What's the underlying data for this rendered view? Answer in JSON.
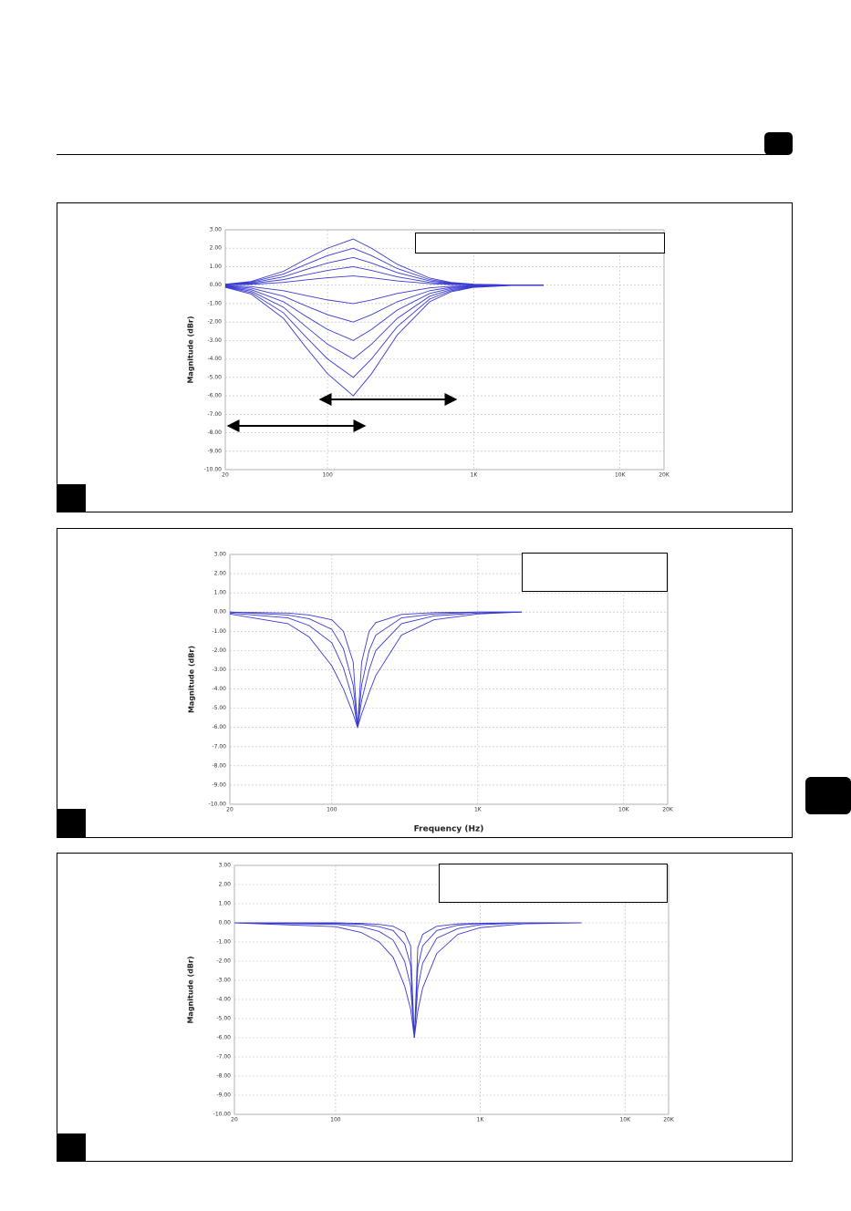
{
  "chart_data": [
    {
      "type": "line",
      "y_label": "Magnitude (dBr)",
      "color": "#3b3bd0",
      "grid": true,
      "xscale": "log",
      "xlim": [
        20,
        20000
      ],
      "ylim": [
        -10,
        3
      ],
      "xticks": [
        20,
        100,
        {
          "value": 1000,
          "label": "1K"
        },
        {
          "value": 10000,
          "label": "10K"
        },
        {
          "value": 20000,
          "label": "20K"
        }
      ],
      "yticks": [
        {
          "value": 3,
          "label": "3.00"
        },
        {
          "value": 2,
          "label": "2.00"
        },
        {
          "value": 1,
          "label": "1.00"
        },
        {
          "value": 0,
          "label": "0.00"
        },
        {
          "value": -1,
          "label": "-1.00"
        },
        {
          "value": -2,
          "label": "-2.00"
        },
        {
          "value": -3,
          "label": "-3.00"
        },
        {
          "value": -4,
          "label": "-4.00"
        },
        {
          "value": -5,
          "label": "-5.00"
        },
        {
          "value": -6,
          "label": "-6.00"
        },
        {
          "value": -7,
          "label": "-7.00"
        },
        {
          "value": -8,
          "label": "-8.00"
        },
        {
          "value": -9,
          "label": "-9.00"
        },
        {
          "value": -10,
          "label": "-10.00"
        }
      ],
      "x": [
        20,
        30,
        50,
        70,
        100,
        150,
        200,
        300,
        500,
        700,
        1000,
        2000,
        3000
      ],
      "series": [
        {
          "values": [
            0.05,
            0.2,
            0.75,
            1.38,
            2,
            2.5,
            2,
            1.13,
            0.38,
            0.15,
            0.05,
            0,
            0
          ]
        },
        {
          "values": [
            0.04,
            0.16,
            0.6,
            1.1,
            1.6,
            2,
            1.6,
            0.9,
            0.3,
            0.12,
            0.04,
            0,
            0
          ]
        },
        {
          "values": [
            0.03,
            0.12,
            0.45,
            0.83,
            1.2,
            1.5,
            1.2,
            0.68,
            0.23,
            0.09,
            0.03,
            0,
            0
          ]
        },
        {
          "values": [
            0.02,
            0.08,
            0.3,
            0.55,
            0.8,
            1,
            0.8,
            0.45,
            0.15,
            0.06,
            0.02,
            0,
            0
          ]
        },
        {
          "values": [
            0.01,
            0.04,
            0.15,
            0.28,
            0.4,
            0.5,
            0.4,
            0.23,
            0.08,
            0.03,
            0.01,
            0,
            0
          ]
        },
        {
          "values": [
            -0.02,
            -0.08,
            -0.3,
            -0.55,
            -0.8,
            -1,
            -0.8,
            -0.45,
            -0.15,
            -0.06,
            -0.02,
            0,
            0
          ]
        },
        {
          "values": [
            -0.04,
            -0.16,
            -0.6,
            -1.1,
            -1.6,
            -2,
            -1.6,
            -0.9,
            -0.3,
            -0.12,
            -0.04,
            0,
            0
          ]
        },
        {
          "values": [
            -0.06,
            -0.24,
            -0.9,
            -1.65,
            -2.4,
            -3,
            -2.4,
            -1.35,
            -0.45,
            -0.18,
            -0.06,
            0,
            0
          ]
        },
        {
          "values": [
            -0.08,
            -0.32,
            -1.2,
            -2.2,
            -3.2,
            -4,
            -3.2,
            -1.8,
            -0.6,
            -0.24,
            -0.08,
            0,
            0
          ]
        },
        {
          "values": [
            -0.1,
            -0.4,
            -1.5,
            -2.75,
            -4,
            -5,
            -4,
            -2.25,
            -0.75,
            -0.3,
            -0.1,
            0,
            0
          ]
        },
        {
          "values": [
            -0.12,
            -0.48,
            -1.8,
            -3.3,
            -4.8,
            -6,
            -4.8,
            -2.7,
            -0.9,
            -0.36,
            -0.12,
            0,
            0
          ]
        }
      ]
    },
    {
      "type": "line",
      "y_label": "Magnitude (dBr)",
      "x_label": "Frequency (Hz)",
      "color": "#3b3bd0",
      "grid": true,
      "xscale": "log",
      "xlim": [
        20,
        20000
      ],
      "ylim": [
        -10,
        3
      ],
      "xticks": [
        20,
        100,
        {
          "value": 1000,
          "label": "1K"
        },
        {
          "value": 10000,
          "label": "10K"
        },
        {
          "value": 20000,
          "label": "20K"
        }
      ],
      "yticks": [
        {
          "value": 3,
          "label": "3.00"
        },
        {
          "value": 2,
          "label": "2.00"
        },
        {
          "value": 1,
          "label": "1.00"
        },
        {
          "value": 0,
          "label": "0.00"
        },
        {
          "value": -1,
          "label": "-1.00"
        },
        {
          "value": -2,
          "label": "-2.00"
        },
        {
          "value": -3,
          "label": "-3.00"
        },
        {
          "value": -4,
          "label": "-4.00"
        },
        {
          "value": -5,
          "label": "-5.00"
        },
        {
          "value": -6,
          "label": "-6.00"
        },
        {
          "value": -7,
          "label": "-7.00"
        },
        {
          "value": -8,
          "label": "-8.00"
        },
        {
          "value": -9,
          "label": "-9.00"
        },
        {
          "value": -10,
          "label": "-10.00"
        }
      ],
      "x": [
        20,
        50,
        70,
        100,
        120,
        140,
        150,
        160,
        180,
        200,
        300,
        500,
        1000,
        2000
      ],
      "series": [
        {
          "values": [
            -0.1,
            -0.6,
            -1.3,
            -2.8,
            -4,
            -5.3,
            -6,
            -5.3,
            -4.2,
            -3.3,
            -1.2,
            -0.4,
            -0.1,
            0
          ]
        },
        {
          "values": [
            -0.05,
            -0.3,
            -0.7,
            -1.6,
            -2.9,
            -4.6,
            -6,
            -4.6,
            -3,
            -2,
            -0.6,
            -0.2,
            -0.05,
            0
          ]
        },
        {
          "values": [
            0,
            -0.15,
            -0.35,
            -0.9,
            -1.9,
            -3.8,
            -6,
            -3.8,
            -2,
            -1.2,
            -0.3,
            -0.1,
            0,
            0
          ]
        },
        {
          "values": [
            0,
            -0.05,
            -0.15,
            -0.4,
            -1,
            -2.6,
            -6,
            -2.6,
            -1,
            -0.55,
            -0.12,
            -0.03,
            0,
            0
          ]
        }
      ]
    },
    {
      "type": "line",
      "y_label": "Magnitude (dBr)",
      "color": "#3b3bd0",
      "grid": true,
      "xscale": "log",
      "xlim": [
        20,
        20000
      ],
      "ylim": [
        -10,
        3
      ],
      "xticks": [
        20,
        100,
        {
          "value": 1000,
          "label": "1K"
        },
        {
          "value": 10000,
          "label": "10K"
        },
        {
          "value": 20000,
          "label": "20K"
        }
      ],
      "yticks": [
        {
          "value": 3,
          "label": "3.00"
        },
        {
          "value": 2,
          "label": "2.00"
        },
        {
          "value": 1,
          "label": "1.00"
        },
        {
          "value": 0,
          "label": "0.00"
        },
        {
          "value": -1,
          "label": "-1.00"
        },
        {
          "value": -2,
          "label": "-2.00"
        },
        {
          "value": -3,
          "label": "-3.00"
        },
        {
          "value": -4,
          "label": "-4.00"
        },
        {
          "value": -5,
          "label": "-5.00"
        },
        {
          "value": -6,
          "label": "-6.00"
        },
        {
          "value": -7,
          "label": "-7.00"
        },
        {
          "value": -8,
          "label": "-8.00"
        },
        {
          "value": -9,
          "label": "-9.00"
        },
        {
          "value": -10,
          "label": "-10.00"
        }
      ],
      "x": [
        20,
        100,
        150,
        200,
        250,
        300,
        330,
        350,
        370,
        400,
        500,
        700,
        1000,
        2000,
        5000
      ],
      "series": [
        {
          "values": [
            0,
            -0.2,
            -0.5,
            -1,
            -1.8,
            -3.3,
            -4.5,
            -6,
            -4.6,
            -3.4,
            -1.6,
            -0.6,
            -0.25,
            -0.05,
            0
          ]
        },
        {
          "values": [
            0,
            -0.08,
            -0.2,
            -0.45,
            -0.9,
            -2,
            -3.3,
            -6,
            -3.4,
            -2.1,
            -0.8,
            -0.3,
            -0.1,
            0,
            0
          ]
        },
        {
          "values": [
            0,
            -0.03,
            -0.08,
            -0.2,
            -0.4,
            -1.1,
            -2.2,
            -6,
            -2.3,
            -1.2,
            -0.4,
            -0.12,
            -0.04,
            0,
            0
          ]
        },
        {
          "values": [
            0,
            0,
            -0.03,
            -0.08,
            -0.18,
            -0.5,
            -1.2,
            -6,
            -1.3,
            -0.6,
            -0.18,
            -0.05,
            -0.02,
            0,
            0
          ]
        }
      ]
    }
  ]
}
